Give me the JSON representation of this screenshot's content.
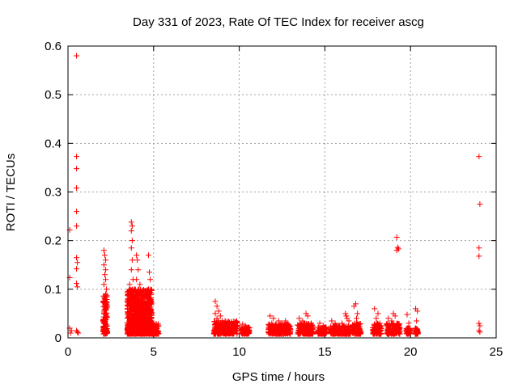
{
  "chart_data": {
    "type": "scatter",
    "title": "Day 331 of 2023, Rate Of TEC Index for receiver ascg",
    "xlabel": "GPS time / hours",
    "ylabel": "ROTI / TECUs",
    "xlim": [
      0,
      25
    ],
    "ylim": [
      0,
      0.6
    ],
    "xticks": [
      0,
      5,
      10,
      15,
      20,
      25
    ],
    "xtick_labels": [
      "0",
      "5",
      "10",
      "15",
      "20",
      "25"
    ],
    "yticks": [
      0,
      0.1,
      0.2,
      0.3,
      0.4,
      0.5,
      0.6
    ],
    "ytick_labels": [
      "0",
      "0.1",
      "0.2",
      "0.3",
      "0.4",
      "0.5",
      "0.6"
    ],
    "grid": true,
    "marker": "+",
    "color": "#ff0000",
    "series": [
      {
        "name": "ROTI",
        "points": [
          [
            0.1,
            0.222
          ],
          [
            0.1,
            0.124
          ],
          [
            0.1,
            0.02
          ],
          [
            0.15,
            0.01
          ],
          [
            0.2,
            0.015
          ],
          [
            0.5,
            0.58
          ],
          [
            0.5,
            0.373
          ],
          [
            0.5,
            0.348
          ],
          [
            0.5,
            0.308
          ],
          [
            0.5,
            0.26
          ],
          [
            0.5,
            0.23
          ],
          [
            0.5,
            0.165
          ],
          [
            0.55,
            0.155
          ],
          [
            0.5,
            0.142
          ],
          [
            0.5,
            0.112
          ],
          [
            0.55,
            0.105
          ],
          [
            0.5,
            0.015
          ],
          [
            0.55,
            0.012
          ],
          [
            0.6,
            0.01
          ],
          [
            2.1,
            0.18
          ],
          [
            2.15,
            0.17
          ],
          [
            2.2,
            0.16
          ],
          [
            2.1,
            0.15
          ],
          [
            2.2,
            0.14
          ],
          [
            2.15,
            0.13
          ],
          [
            2.2,
            0.12
          ],
          [
            2.1,
            0.11
          ],
          [
            2.25,
            0.1
          ],
          [
            2.2,
            0.09
          ],
          [
            2.15,
            0.08
          ],
          [
            2.2,
            0.07
          ],
          [
            2.25,
            0.06
          ],
          [
            2.1,
            0.05
          ],
          [
            2.2,
            0.04
          ],
          [
            2.15,
            0.03
          ],
          [
            2.2,
            0.02
          ],
          [
            2.1,
            0.015
          ],
          [
            3.7,
            0.238
          ],
          [
            3.75,
            0.23
          ],
          [
            3.7,
            0.22
          ],
          [
            3.75,
            0.2
          ],
          [
            3.7,
            0.185
          ],
          [
            3.75,
            0.16
          ],
          [
            3.7,
            0.14
          ],
          [
            3.8,
            0.12
          ],
          [
            3.6,
            0.11
          ],
          [
            3.9,
            0.1
          ],
          [
            3.5,
            0.09
          ],
          [
            3.6,
            0.08
          ],
          [
            3.7,
            0.07
          ],
          [
            3.8,
            0.06
          ],
          [
            3.55,
            0.05
          ],
          [
            3.65,
            0.04
          ],
          [
            3.75,
            0.03
          ],
          [
            3.85,
            0.02
          ],
          [
            3.6,
            0.015
          ],
          [
            4.0,
            0.17
          ],
          [
            4.05,
            0.16
          ],
          [
            4.1,
            0.14
          ],
          [
            4.0,
            0.12
          ],
          [
            4.2,
            0.11
          ],
          [
            4.1,
            0.1
          ],
          [
            4.3,
            0.09
          ],
          [
            4.0,
            0.08
          ],
          [
            4.2,
            0.07
          ],
          [
            4.4,
            0.06
          ],
          [
            4.1,
            0.05
          ],
          [
            4.3,
            0.04
          ],
          [
            4.5,
            0.035
          ],
          [
            4.2,
            0.03
          ],
          [
            4.4,
            0.02
          ],
          [
            4.0,
            0.015
          ],
          [
            4.6,
            0.03
          ],
          [
            4.7,
            0.17
          ],
          [
            4.75,
            0.135
          ],
          [
            4.8,
            0.12
          ],
          [
            4.7,
            0.1
          ],
          [
            4.8,
            0.08
          ],
          [
            4.75,
            0.06
          ],
          [
            4.85,
            0.05
          ],
          [
            4.7,
            0.04
          ],
          [
            4.9,
            0.03
          ],
          [
            5.0,
            0.025
          ],
          [
            5.1,
            0.02
          ],
          [
            5.2,
            0.015
          ],
          [
            5.25,
            0.025
          ],
          [
            8.6,
            0.075
          ],
          [
            8.7,
            0.065
          ],
          [
            8.8,
            0.055
          ],
          [
            8.6,
            0.05
          ],
          [
            8.9,
            0.045
          ],
          [
            8.7,
            0.04
          ],
          [
            9.0,
            0.035
          ],
          [
            8.8,
            0.03
          ],
          [
            9.2,
            0.028
          ],
          [
            9.1,
            0.025
          ],
          [
            9.4,
            0.02
          ],
          [
            9.6,
            0.018
          ],
          [
            9.8,
            0.015
          ],
          [
            9.9,
            0.025
          ],
          [
            9.7,
            0.03
          ],
          [
            10.2,
            0.028
          ],
          [
            10.4,
            0.022
          ],
          [
            10.3,
            0.015
          ],
          [
            10.5,
            0.012
          ],
          [
            10.35,
            0.025
          ],
          [
            11.8,
            0.045
          ],
          [
            12.0,
            0.04
          ],
          [
            11.9,
            0.03
          ],
          [
            12.1,
            0.025
          ],
          [
            12.3,
            0.035
          ],
          [
            12.5,
            0.03
          ],
          [
            12.4,
            0.02
          ],
          [
            12.7,
            0.035
          ],
          [
            12.8,
            0.025
          ],
          [
            12.9,
            0.015
          ],
          [
            13.5,
            0.04
          ],
          [
            13.7,
            0.035
          ],
          [
            13.9,
            0.05
          ],
          [
            14.0,
            0.045
          ],
          [
            13.8,
            0.025
          ],
          [
            14.1,
            0.02
          ],
          [
            13.6,
            0.015
          ],
          [
            14.2,
            0.03
          ],
          [
            14.7,
            0.03
          ],
          [
            14.9,
            0.025
          ],
          [
            15.0,
            0.02
          ],
          [
            14.8,
            0.015
          ],
          [
            15.4,
            0.035
          ],
          [
            15.6,
            0.03
          ],
          [
            15.5,
            0.02
          ],
          [
            15.8,
            0.025
          ],
          [
            15.7,
            0.015
          ],
          [
            16.0,
            0.03
          ],
          [
            16.1,
            0.02
          ],
          [
            16.3,
            0.04
          ],
          [
            16.2,
            0.05
          ],
          [
            16.25,
            0.045
          ],
          [
            16.4,
            0.035
          ],
          [
            16.7,
            0.065
          ],
          [
            16.8,
            0.07
          ],
          [
            16.9,
            0.05
          ],
          [
            16.85,
            0.04
          ],
          [
            16.75,
            0.03
          ],
          [
            17.0,
            0.02
          ],
          [
            16.8,
            0.015
          ],
          [
            17.9,
            0.06
          ],
          [
            18.0,
            0.04
          ],
          [
            18.1,
            0.05
          ],
          [
            18.05,
            0.03
          ],
          [
            17.95,
            0.02
          ],
          [
            18.2,
            0.025
          ],
          [
            18.1,
            0.015
          ],
          [
            18.7,
            0.04
          ],
          [
            18.9,
            0.035
          ],
          [
            19.0,
            0.05
          ],
          [
            19.1,
            0.045
          ],
          [
            18.8,
            0.025
          ],
          [
            19.2,
            0.03
          ],
          [
            19.3,
            0.02
          ],
          [
            18.9,
            0.015
          ],
          [
            19.2,
            0.207
          ],
          [
            19.25,
            0.186
          ],
          [
            19.2,
            0.18
          ],
          [
            19.3,
            0.183
          ],
          [
            19.8,
            0.048
          ],
          [
            19.9,
            0.03
          ],
          [
            19.85,
            0.02
          ],
          [
            19.8,
            0.012
          ],
          [
            20.3,
            0.06
          ],
          [
            20.4,
            0.055
          ],
          [
            20.35,
            0.035
          ],
          [
            20.3,
            0.02
          ],
          [
            20.4,
            0.015
          ],
          [
            24.0,
            0.373
          ],
          [
            24.05,
            0.275
          ],
          [
            24.0,
            0.185
          ],
          [
            24.0,
            0.168
          ],
          [
            24.0,
            0.03
          ],
          [
            24.05,
            0.025
          ],
          [
            24.0,
            0.015
          ],
          [
            24.05,
            0.012
          ]
        ]
      }
    ],
    "dense_clusters": [
      {
        "x_start": 2.05,
        "x_end": 2.3,
        "y_max": 0.09,
        "count": 110
      },
      {
        "x_start": 3.45,
        "x_end": 4.9,
        "y_max": 0.1,
        "count": 900
      },
      {
        "x_start": 4.9,
        "x_end": 5.3,
        "y_max": 0.03,
        "count": 90
      },
      {
        "x_start": 8.5,
        "x_end": 9.9,
        "y_max": 0.035,
        "count": 280
      },
      {
        "x_start": 10.1,
        "x_end": 10.6,
        "y_max": 0.022,
        "count": 90
      },
      {
        "x_start": 11.7,
        "x_end": 13.0,
        "y_max": 0.028,
        "count": 220
      },
      {
        "x_start": 13.4,
        "x_end": 14.3,
        "y_max": 0.03,
        "count": 170
      },
      {
        "x_start": 14.6,
        "x_end": 15.1,
        "y_max": 0.022,
        "count": 90
      },
      {
        "x_start": 15.3,
        "x_end": 16.5,
        "y_max": 0.025,
        "count": 190
      },
      {
        "x_start": 16.6,
        "x_end": 17.1,
        "y_max": 0.03,
        "count": 110
      },
      {
        "x_start": 17.8,
        "x_end": 18.3,
        "y_max": 0.03,
        "count": 100
      },
      {
        "x_start": 18.6,
        "x_end": 19.4,
        "y_max": 0.03,
        "count": 140
      },
      {
        "x_start": 19.75,
        "x_end": 20.0,
        "y_max": 0.02,
        "count": 40
      },
      {
        "x_start": 20.25,
        "x_end": 20.45,
        "y_max": 0.02,
        "count": 40
      }
    ]
  }
}
